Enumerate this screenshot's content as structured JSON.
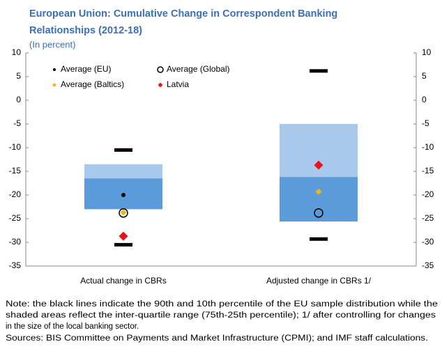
{
  "chart_data": {
    "type": "box",
    "title": [
      "European Union: Cumulative Change in Correspondent Banking",
      "Relationships (2012-18)"
    ],
    "subtitle": "(In percent)",
    "categories": [
      "Actual change in CBRs",
      "Adjusted change in CBRs 1/"
    ],
    "boxes": {
      "q3": [
        -13.5,
        -5
      ],
      "median": [
        -16.5,
        -16.2
      ],
      "q1": [
        -23,
        -25.6
      ],
      "upper_color": "#a9c9ec",
      "lower_color": "#5b9bd9"
    },
    "p90": [
      -10.5,
      6.2
    ],
    "p10": [
      -30.5,
      -29.3
    ],
    "series": [
      {
        "name": "Average (EU)",
        "color": "#000000",
        "marker": "dot",
        "values": [
          -20,
          null
        ]
      },
      {
        "name": "Average (Global)",
        "color": "#000000",
        "marker": "ring",
        "values": [
          -23.8,
          -23.8
        ]
      },
      {
        "name": "Average (Baltics)",
        "color": "#f5b21f",
        "marker": "small-diamond",
        "values": [
          -23.7,
          -19.3
        ]
      },
      {
        "name": "Latvia",
        "color": "#e8141b",
        "marker": "diamond",
        "values": [
          -28.7,
          -13.7
        ]
      }
    ],
    "ylim": [
      -35,
      10
    ],
    "yticks": [
      10,
      5,
      0,
      -5,
      -10,
      -15,
      -20,
      -25,
      -30,
      -35
    ],
    "notes": [
      "Note:  the black lines indicate the 90th and 10th percentile of the EU sample distribution while the",
      "shaded areas reflect the inter-quartile range (75th-25th percentile); 1/ after controlling for changes",
      "in the size of the local banking sector.",
      "Sources: BIS Committee on Payments and Market Infrastructure (CPMI); and IMF staff calculations."
    ]
  }
}
